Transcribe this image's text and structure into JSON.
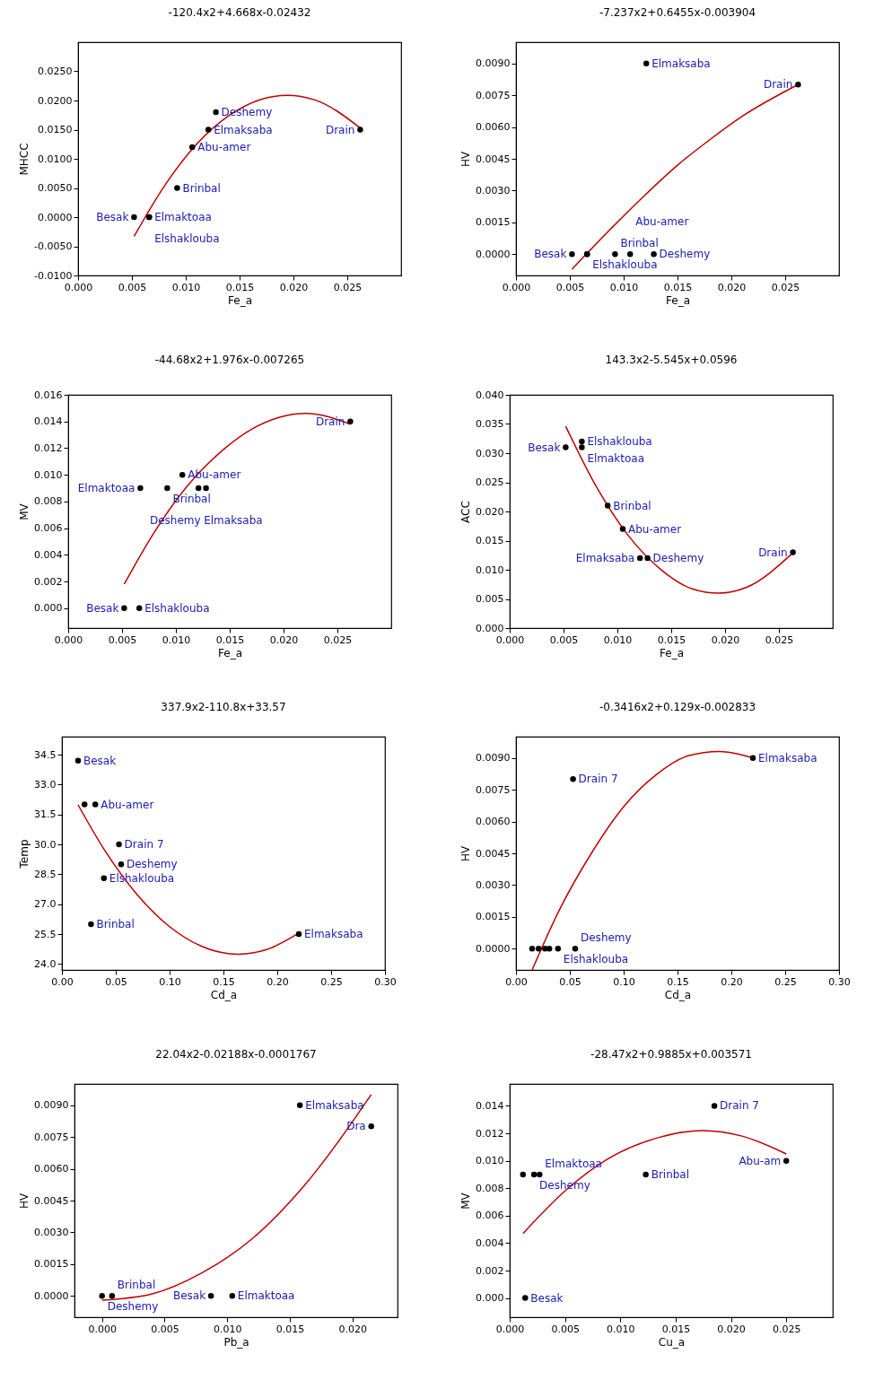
{
  "chart_data": [
    {
      "type": "scatter",
      "title": "-120.4x2+4.668x-0.02432",
      "xlabel": "Fe_a",
      "ylabel": "MHCC",
      "xlim": [
        0,
        0.03
      ],
      "xticks": [
        {
          "value": 0,
          "label": "0.000"
        },
        0.005,
        {
          "value": 0.01,
          "label": "0.010"
        },
        0.015,
        {
          "value": 0.02,
          "label": "0.020"
        },
        0.025
      ],
      "ylim": [
        -0.01,
        0.03
      ],
      "yticks": [
        {
          "value": -0.01,
          "label": "-0.0100"
        },
        {
          "value": -0.005,
          "label": "-0.0050"
        },
        {
          "value": 0,
          "label": "0.0000"
        },
        {
          "value": 0.005,
          "label": "0.0050"
        },
        {
          "value": 0.01,
          "label": "0.0100"
        },
        {
          "value": 0.015,
          "label": "0.0150"
        },
        {
          "value": 0.02,
          "label": "0.0200"
        },
        {
          "value": 0.025,
          "label": "0.0250"
        }
      ],
      "series": [
        {
          "marker": "circle",
          "color": "#000000",
          "x": [
            0.0052,
            0.0066,
            0.0066,
            0.0092,
            0.0106,
            0.0121,
            0.0128,
            0.0262
          ],
          "values": [
            0,
            0,
            0,
            0.005,
            0.012,
            0.015,
            0.018,
            0.015
          ]
        },
        {
          "type": "line",
          "color": "#c00000",
          "x": [
            0.0052,
            0.008,
            0.011,
            0.014,
            0.017,
            0.0194,
            0.022,
            0.0262
          ],
          "values": [
            -0.0033,
            0.0053,
            0.0125,
            0.0174,
            0.0202,
            0.0209,
            0.0201,
            0.0153
          ]
        }
      ],
      "annotations": [
        {
          "text": "Besak",
          "x": 0.0052,
          "y": 0
        },
        {
          "text": "Elmaktoaa",
          "x": 0.0066,
          "y": 0
        },
        {
          "text": "Elshaklouba",
          "x": 0.0066,
          "y": 0
        },
        {
          "text": "Brinbal",
          "x": 0.0092,
          "y": 0.005
        },
        {
          "text": "Abu-amer",
          "x": 0.0106,
          "y": 0.012
        },
        {
          "text": "Elmaksaba",
          "x": 0.0121,
          "y": 0.015
        },
        {
          "text": "Deshemy",
          "x": 0.0128,
          "y": 0.018
        },
        {
          "text": "Drain",
          "x": 0.0262,
          "y": 0.015
        }
      ]
    },
    {
      "type": "scatter",
      "title": "-7.237x2+0.6455x-0.003904",
      "xlabel": "Fe_a",
      "ylabel": "HV",
      "xlim": [
        0,
        0.03
      ],
      "xticks": [
        {
          "value": 0,
          "label": "0.000"
        },
        0.005,
        {
          "value": 0.01,
          "label": "0.010"
        },
        0.015,
        {
          "value": 0.02,
          "label": "0.020"
        },
        0.025
      ],
      "ylim": [
        -0.001,
        0.01
      ],
      "yticks": [
        {
          "value": 0,
          "label": "0.0000"
        },
        0.0015,
        {
          "value": 0.003,
          "label": "0.0030"
        },
        0.0045,
        {
          "value": 0.006,
          "label": "0.0060"
        },
        0.0075,
        {
          "value": 0.009,
          "label": "0.0090"
        }
      ],
      "series": [
        {
          "marker": "circle",
          "color": "#000000",
          "x": [
            0.0052,
            0.0066,
            0.0066,
            0.0092,
            0.0106,
            0.0128,
            0.0121,
            0.0262
          ],
          "values": [
            0,
            0,
            0,
            0,
            0,
            0,
            0.009,
            0.008
          ]
        },
        {
          "type": "line",
          "color": "#c00000",
          "x": [
            0.0052,
            0.009,
            0.012,
            0.015,
            0.018,
            0.021,
            0.0262
          ],
          "values": [
            -0.0007,
            0.0013,
            0.0028,
            0.0042,
            0.0054,
            0.0065,
            0.008
          ]
        }
      ],
      "annotations": [
        {
          "text": "Besak",
          "x": 0.0052,
          "y": 0
        },
        {
          "text": "Elshaklouba",
          "x": 0.0066,
          "y": 0
        },
        {
          "text": "Brinbal",
          "x": 0.0092,
          "y": 0
        },
        {
          "text": "Abu-amer",
          "x": 0.0106,
          "y": 0
        },
        {
          "text": "Deshemy",
          "x": 0.0128,
          "y": 0
        },
        {
          "text": "Elmaksaba",
          "x": 0.0121,
          "y": 0.009
        },
        {
          "text": "Drain",
          "x": 0.0262,
          "y": 0.008
        }
      ]
    },
    {
      "type": "scatter",
      "title": "-44.68x2+1.976x-0.007265",
      "xlabel": "Fe_a",
      "ylabel": "MV",
      "xlim": [
        0,
        0.03
      ],
      "xticks": [
        {
          "value": 0,
          "label": "0.000"
        },
        0.005,
        {
          "value": 0.01,
          "label": "0.010"
        },
        0.015,
        {
          "value": 0.02,
          "label": "0.020"
        },
        0.025
      ],
      "ylim": [
        -0.0015,
        0.016
      ],
      "yticks": [
        {
          "value": 0,
          "label": "0.000"
        },
        0.002,
        0.004,
        0.006,
        0.008,
        {
          "value": 0.01,
          "label": "0.010"
        },
        0.012,
        0.014,
        0.016
      ],
      "series": [
        {
          "marker": "circle",
          "color": "#000000",
          "x": [
            0.0052,
            0.0066,
            0.0067,
            0.0092,
            0.0106,
            0.0121,
            0.0128,
            0.0262
          ],
          "values": [
            0,
            0,
            0.009,
            0.009,
            0.01,
            0.009,
            0.009,
            0.014
          ]
        },
        {
          "type": "line",
          "color": "#c00000",
          "x": [
            0.0052,
            0.008,
            0.011,
            0.014,
            0.017,
            0.0221,
            0.0262
          ],
          "values": [
            0.0018,
            0.0057,
            0.0091,
            0.0116,
            0.0134,
            0.0146,
            0.0138
          ]
        }
      ],
      "annotations": [
        {
          "text": "Besak",
          "x": 0.0052,
          "y": 0
        },
        {
          "text": "Elshaklouba",
          "x": 0.0066,
          "y": 0
        },
        {
          "text": "Elmaktoaa",
          "x": 0.0067,
          "y": 0.009
        },
        {
          "text": "Brinbal",
          "x": 0.0092,
          "y": 0.009
        },
        {
          "text": "Abu-amer",
          "x": 0.0106,
          "y": 0.01
        },
        {
          "text": "Elmaksaba",
          "x": 0.0121,
          "y": 0.009
        },
        {
          "text": "Deshemy",
          "x": 0.0128,
          "y": 0.009
        },
        {
          "text": "Drain",
          "x": 0.0262,
          "y": 0.014
        }
      ]
    },
    {
      "type": "scatter",
      "title": "143.3x2-5.545x+0.0596",
      "xlabel": "Fe_a",
      "ylabel": "ACC",
      "xlim": [
        0,
        0.03
      ],
      "xticks": [
        {
          "value": 0,
          "label": "0.000"
        },
        0.005,
        {
          "value": 0.01,
          "label": "0.010"
        },
        0.015,
        {
          "value": 0.02,
          "label": "0.020"
        },
        0.025
      ],
      "ylim": [
        0,
        0.04
      ],
      "yticks": [
        {
          "value": 0,
          "label": "0.000"
        },
        0.005,
        {
          "value": 0.01,
          "label": "0.010"
        },
        0.015,
        {
          "value": 0.02,
          "label": "0.020"
        },
        0.025,
        {
          "value": 0.03,
          "label": "0.030"
        },
        0.035,
        {
          "value": 0.04,
          "label": "0.040"
        }
      ],
      "series": [
        {
          "marker": "circle",
          "color": "#000000",
          "x": [
            0.0052,
            0.0067,
            0.0067,
            0.0091,
            0.0105,
            0.0121,
            0.0128,
            0.0263
          ],
          "values": [
            0.031,
            0.032,
            0.031,
            0.021,
            0.017,
            0.012,
            0.012,
            0.013
          ]
        },
        {
          "type": "line",
          "color": "#c00000",
          "x": [
            0.0052,
            0.008,
            0.011,
            0.014,
            0.017,
            0.0194,
            0.022,
            0.0263
          ],
          "values": [
            0.0346,
            0.0244,
            0.0159,
            0.0101,
            0.0067,
            0.006,
            0.007,
            0.0129
          ]
        }
      ],
      "annotations": [
        {
          "text": "Besak",
          "x": 0.0052,
          "y": 0.031
        },
        {
          "text": "Elshaklouba",
          "x": 0.0067,
          "y": 0.032
        },
        {
          "text": "Elmaktoaa",
          "x": 0.0067,
          "y": 0.031
        },
        {
          "text": "Brinbal",
          "x": 0.0091,
          "y": 0.021
        },
        {
          "text": "Abu-amer",
          "x": 0.0105,
          "y": 0.017
        },
        {
          "text": "Elmaksaba",
          "x": 0.0121,
          "y": 0.012
        },
        {
          "text": "Deshemy",
          "x": 0.0128,
          "y": 0.012
        },
        {
          "text": "Drain",
          "x": 0.0263,
          "y": 0.013
        }
      ]
    },
    {
      "type": "scatter",
      "title": "337.9x2-110.8x+33.57",
      "xlabel": "Cd_a",
      "ylabel": "Temp",
      "xlim": [
        0,
        0.3
      ],
      "xticks": [
        {
          "value": 0,
          "label": "0.00"
        },
        0.05,
        {
          "value": 0.1,
          "label": "0.10"
        },
        0.15,
        {
          "value": 0.2,
          "label": "0.20"
        },
        0.25,
        {
          "value": 0.3,
          "label": "0.30"
        }
      ],
      "ylim": [
        23.7,
        35.4
      ],
      "yticks": [
        {
          "value": 24,
          "label": "24.0"
        },
        25.5,
        {
          "value": 27,
          "label": "27.0"
        },
        28.5,
        {
          "value": 30,
          "label": "30.0"
        },
        31.5,
        {
          "value": 33,
          "label": "33.0"
        },
        34.5
      ],
      "series": [
        {
          "marker": "circle",
          "color": "#000000",
          "x": [
            0.015,
            0.021,
            0.031,
            0.053,
            0.055,
            0.039,
            0.027,
            0.22
          ],
          "values": [
            34.2,
            32,
            32,
            30,
            29,
            28.3,
            26,
            25.5
          ]
        },
        {
          "type": "line",
          "color": "#c00000",
          "x": [
            0.015,
            0.04,
            0.07,
            0.1,
            0.13,
            0.164,
            0.19,
            0.22
          ],
          "values": [
            31.98,
            29.68,
            27.47,
            25.87,
            24.88,
            24.49,
            24.72,
            25.55
          ]
        }
      ],
      "annotations": [
        {
          "text": "Besak",
          "x": 0.015,
          "y": 34.2
        },
        {
          "text": "Abu-amer",
          "x": 0.031,
          "y": 32
        },
        {
          "text": "Drain 7",
          "x": 0.053,
          "y": 30
        },
        {
          "text": "Deshemy",
          "x": 0.055,
          "y": 29
        },
        {
          "text": "Elshaklouba",
          "x": 0.039,
          "y": 28.3
        },
        {
          "text": "Brinbal",
          "x": 0.027,
          "y": 26
        },
        {
          "text": "Elmaksaba",
          "x": 0.22,
          "y": 25.5
        }
      ]
    },
    {
      "type": "scatter",
      "title": "-0.3416x2+0.129x-0.002833",
      "xlabel": "Cd_a",
      "ylabel": "HV",
      "xlim": [
        0,
        0.3
      ],
      "xticks": [
        {
          "value": 0,
          "label": "0.00"
        },
        0.05,
        {
          "value": 0.1,
          "label": "0.10"
        },
        0.15,
        {
          "value": 0.2,
          "label": "0.20"
        },
        0.25,
        {
          "value": 0.3,
          "label": "0.30"
        }
      ],
      "ylim": [
        -0.001,
        0.01
      ],
      "yticks": [
        {
          "value": 0,
          "label": "0.0000"
        },
        0.0015,
        {
          "value": 0.003,
          "label": "0.0030"
        },
        0.0045,
        {
          "value": 0.006,
          "label": "0.0060"
        },
        0.0075,
        {
          "value": 0.009,
          "label": "0.0090"
        }
      ],
      "series": [
        {
          "marker": "circle",
          "color": "#000000",
          "x": [
            0.015,
            0.021,
            0.027,
            0.031,
            0.039,
            0.055,
            0.053,
            0.22
          ],
          "values": [
            0,
            0,
            0,
            0,
            0,
            0,
            0.008,
            0.009
          ]
        },
        {
          "type": "line",
          "color": "#c00000",
          "x": [
            0.015,
            0.04,
            0.07,
            0.1,
            0.13,
            0.16,
            0.189,
            0.22
          ],
          "values": [
            -0.001,
            0.0018,
            0.0045,
            0.0067,
            0.0082,
            0.0091,
            0.0093,
            0.009
          ]
        }
      ],
      "annotations": [
        {
          "text": "Elshaklouba",
          "x": 0.039,
          "y": 0
        },
        {
          "text": "Deshemy",
          "x": 0.055,
          "y": 0
        },
        {
          "text": "Drain 7",
          "x": 0.053,
          "y": 0.008
        },
        {
          "text": "Elmaksaba",
          "x": 0.22,
          "y": 0.009
        }
      ]
    },
    {
      "type": "scatter",
      "title": "22.04x2-0.02188x-0.0001767",
      "xlabel": "Pb_a",
      "ylabel": "HV",
      "xlim": [
        -0.0022,
        0.0236
      ],
      "xticks": [
        {
          "value": 0,
          "label": "0.000"
        },
        0.005,
        {
          "value": 0.01,
          "label": "0.010"
        },
        0.015,
        {
          "value": 0.02,
          "label": "0.020"
        }
      ],
      "ylim": [
        -0.001,
        0.01
      ],
      "yticks": [
        {
          "value": 0,
          "label": "0.0000"
        },
        0.0015,
        {
          "value": 0.003,
          "label": "0.0030"
        },
        0.0045,
        {
          "value": 0.006,
          "label": "0.0060"
        },
        0.0075,
        {
          "value": 0.009,
          "label": "0.0090"
        }
      ],
      "series": [
        {
          "marker": "circle",
          "color": "#000000",
          "x": [
            0,
            0.0008,
            0.0087,
            0.0104,
            0.0158,
            0.0215
          ],
          "values": [
            0,
            0,
            0,
            0,
            0.009,
            0.008
          ]
        },
        {
          "type": "line",
          "color": "#c00000",
          "x": [
            0,
            0.004,
            0.008,
            0.012,
            0.016,
            0.0215
          ],
          "values": [
            -0.0002,
            0.0001,
            0.0011,
            0.0027,
            0.0051,
            0.0095
          ]
        }
      ],
      "annotations": [
        {
          "text": "Deshemy",
          "x": 0,
          "y": 0
        },
        {
          "text": "Brinbal",
          "x": 0.0008,
          "y": 0
        },
        {
          "text": "Besak",
          "x": 0.0087,
          "y": 0
        },
        {
          "text": "Elmaktoaa",
          "x": 0.0104,
          "y": 0
        },
        {
          "text": "Elmaksaba",
          "x": 0.0158,
          "y": 0.009
        },
        {
          "text": "Dra",
          "x": 0.0215,
          "y": 0.008
        }
      ]
    },
    {
      "type": "scatter",
      "title": "-28.47x2+0.9885x+0.003571",
      "xlabel": "Cu_a",
      "ylabel": "MV",
      "xlim": [
        0,
        0.0292
      ],
      "xticks": [
        {
          "value": 0,
          "label": "0.000"
        },
        0.005,
        {
          "value": 0.01,
          "label": "0.010"
        },
        0.015,
        {
          "value": 0.02,
          "label": "0.020"
        },
        0.025
      ],
      "ylim": [
        -0.0014,
        0.0156
      ],
      "yticks": [
        {
          "value": 0,
          "label": "0.000"
        },
        0.002,
        0.004,
        0.006,
        0.008,
        {
          "value": 0.01,
          "label": "0.010"
        },
        0.012,
        0.014
      ],
      "series": [
        {
          "marker": "circle",
          "color": "#000000",
          "x": [
            0.0014,
            0.0012,
            0.0022,
            0.0027,
            0.0123,
            0.0185,
            0.025
          ],
          "values": [
            0,
            0.009,
            0.009,
            0.009,
            0.009,
            0.014,
            0.01
          ]
        },
        {
          "type": "line",
          "color": "#c00000",
          "x": [
            0.0012,
            0.005,
            0.009,
            0.0135,
            0.0174,
            0.021,
            0.025
          ],
          "values": [
            0.0047,
            0.0078,
            0.0102,
            0.0117,
            0.0122,
            0.0118,
            0.0105
          ]
        }
      ],
      "annotations": [
        {
          "text": "Besak",
          "x": 0.0014,
          "y": 0
        },
        {
          "text": "Deshemy",
          "x": 0.0022,
          "y": 0.009
        },
        {
          "text": "Elmaktoaa",
          "x": 0.0027,
          "y": 0.009
        },
        {
          "text": "Brinbal",
          "x": 0.0123,
          "y": 0.009
        },
        {
          "text": "Drain 7",
          "x": 0.0185,
          "y": 0.014
        },
        {
          "text": "Abu-am",
          "x": 0.025,
          "y": 0.01
        }
      ]
    }
  ]
}
